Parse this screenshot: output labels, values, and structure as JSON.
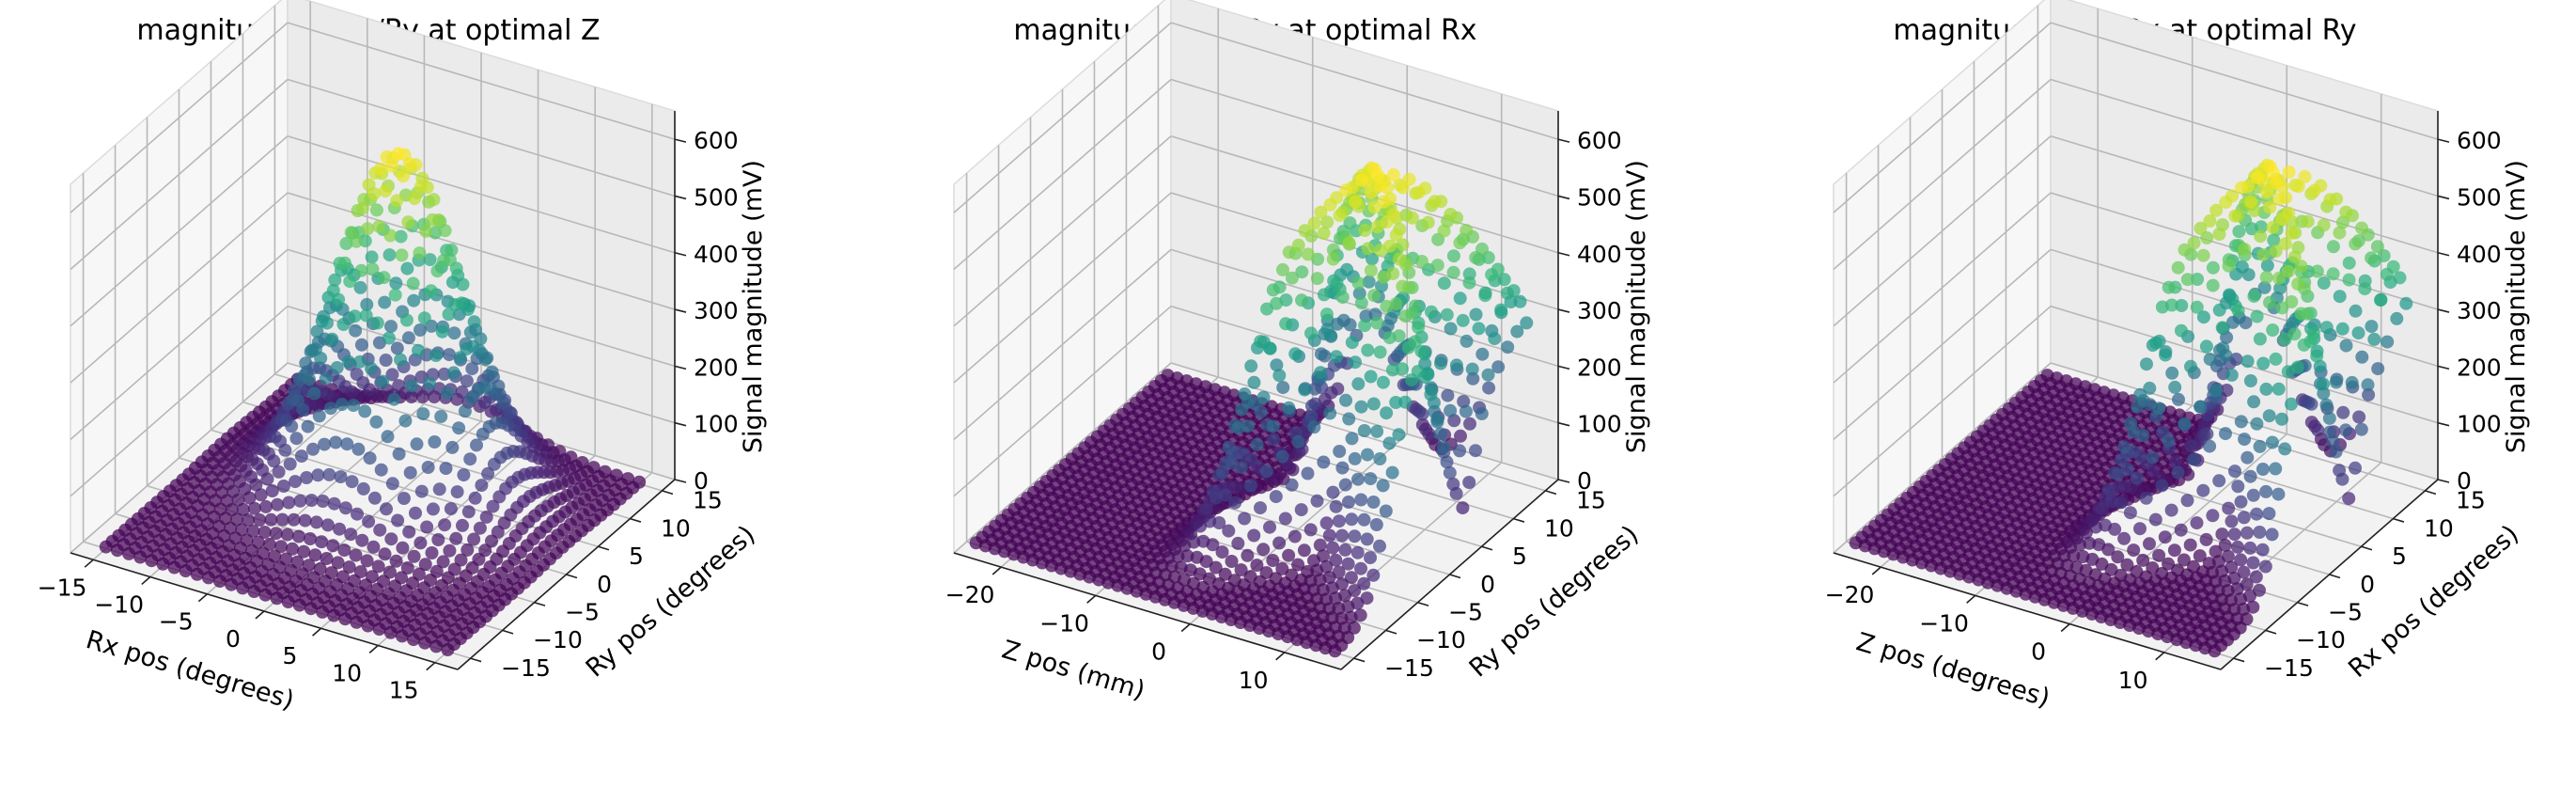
{
  "chart_data": [
    {
      "type": "scatter",
      "title": "magnitude vs Rx/Ry at optimal Z",
      "xlabel": "Rx pos (degrees)",
      "ylabel": "Ry pos (degrees)",
      "zlabel": "Signal magnitude (mV)",
      "xlim": [
        -17,
        17
      ],
      "ylim": [
        -17,
        17
      ],
      "zlim": [
        0,
        650
      ],
      "xticks": [
        -15,
        -10,
        -5,
        0,
        5,
        10,
        15
      ],
      "yticks": [
        -15,
        -10,
        -5,
        0,
        5,
        10,
        15
      ],
      "zticks": [
        0,
        100,
        200,
        300,
        400,
        500,
        600
      ],
      "x": [
        -15,
        15,
        1
      ],
      "y": [
        -15,
        15,
        1
      ],
      "surface": {
        "shape": "gaussian-peak",
        "peak_x": 0,
        "peak_y": 4,
        "peak_z": 600,
        "spread": 5
      },
      "colormap": "viridis",
      "grid": true
    },
    {
      "type": "scatter",
      "title": "magnitude vs Z/Ry at optimal Rx",
      "xlabel": "Z pos (mm)",
      "ylabel": "Ry pos (degrees)",
      "zlabel": "Signal magnitude (mV)",
      "xlim": [
        -25,
        16
      ],
      "ylim": [
        -17,
        17
      ],
      "zlim": [
        0,
        650
      ],
      "xticks": [
        -20,
        -10,
        0,
        10
      ],
      "yticks": [
        -15,
        -10,
        -5,
        0,
        5,
        10,
        15
      ],
      "zticks": [
        0,
        100,
        200,
        300,
        400,
        500,
        600
      ],
      "x": [
        -24,
        14,
        1
      ],
      "y": [
        -15,
        15,
        1
      ],
      "surface": {
        "shape": "v-ridge",
        "peak_x": 5,
        "peak_y": 5,
        "peak_z": 600,
        "spread": 4
      },
      "colormap": "viridis",
      "grid": true
    },
    {
      "type": "scatter",
      "title": "magnitude vs Z/Rx at optimal Ry",
      "xlabel": "Z pos (degrees)",
      "ylabel": "Rx pos (degrees)",
      "zlabel": "Signal magnitude (mV)",
      "xlim": [
        -25,
        16
      ],
      "ylim": [
        -17,
        17
      ],
      "zlim": [
        0,
        650
      ],
      "xticks": [
        -20,
        -10,
        0,
        10
      ],
      "yticks": [
        -15,
        -10,
        -5,
        0,
        5,
        10,
        15
      ],
      "zticks": [
        0,
        100,
        200,
        300,
        400,
        500,
        600
      ],
      "x": [
        -24,
        14,
        1
      ],
      "y": [
        -15,
        15,
        1
      ],
      "surface": {
        "shape": "v-ridge",
        "peak_x": 6,
        "peak_y": 6,
        "peak_z": 600,
        "spread": 3.6
      },
      "colormap": "viridis",
      "grid": true
    }
  ]
}
